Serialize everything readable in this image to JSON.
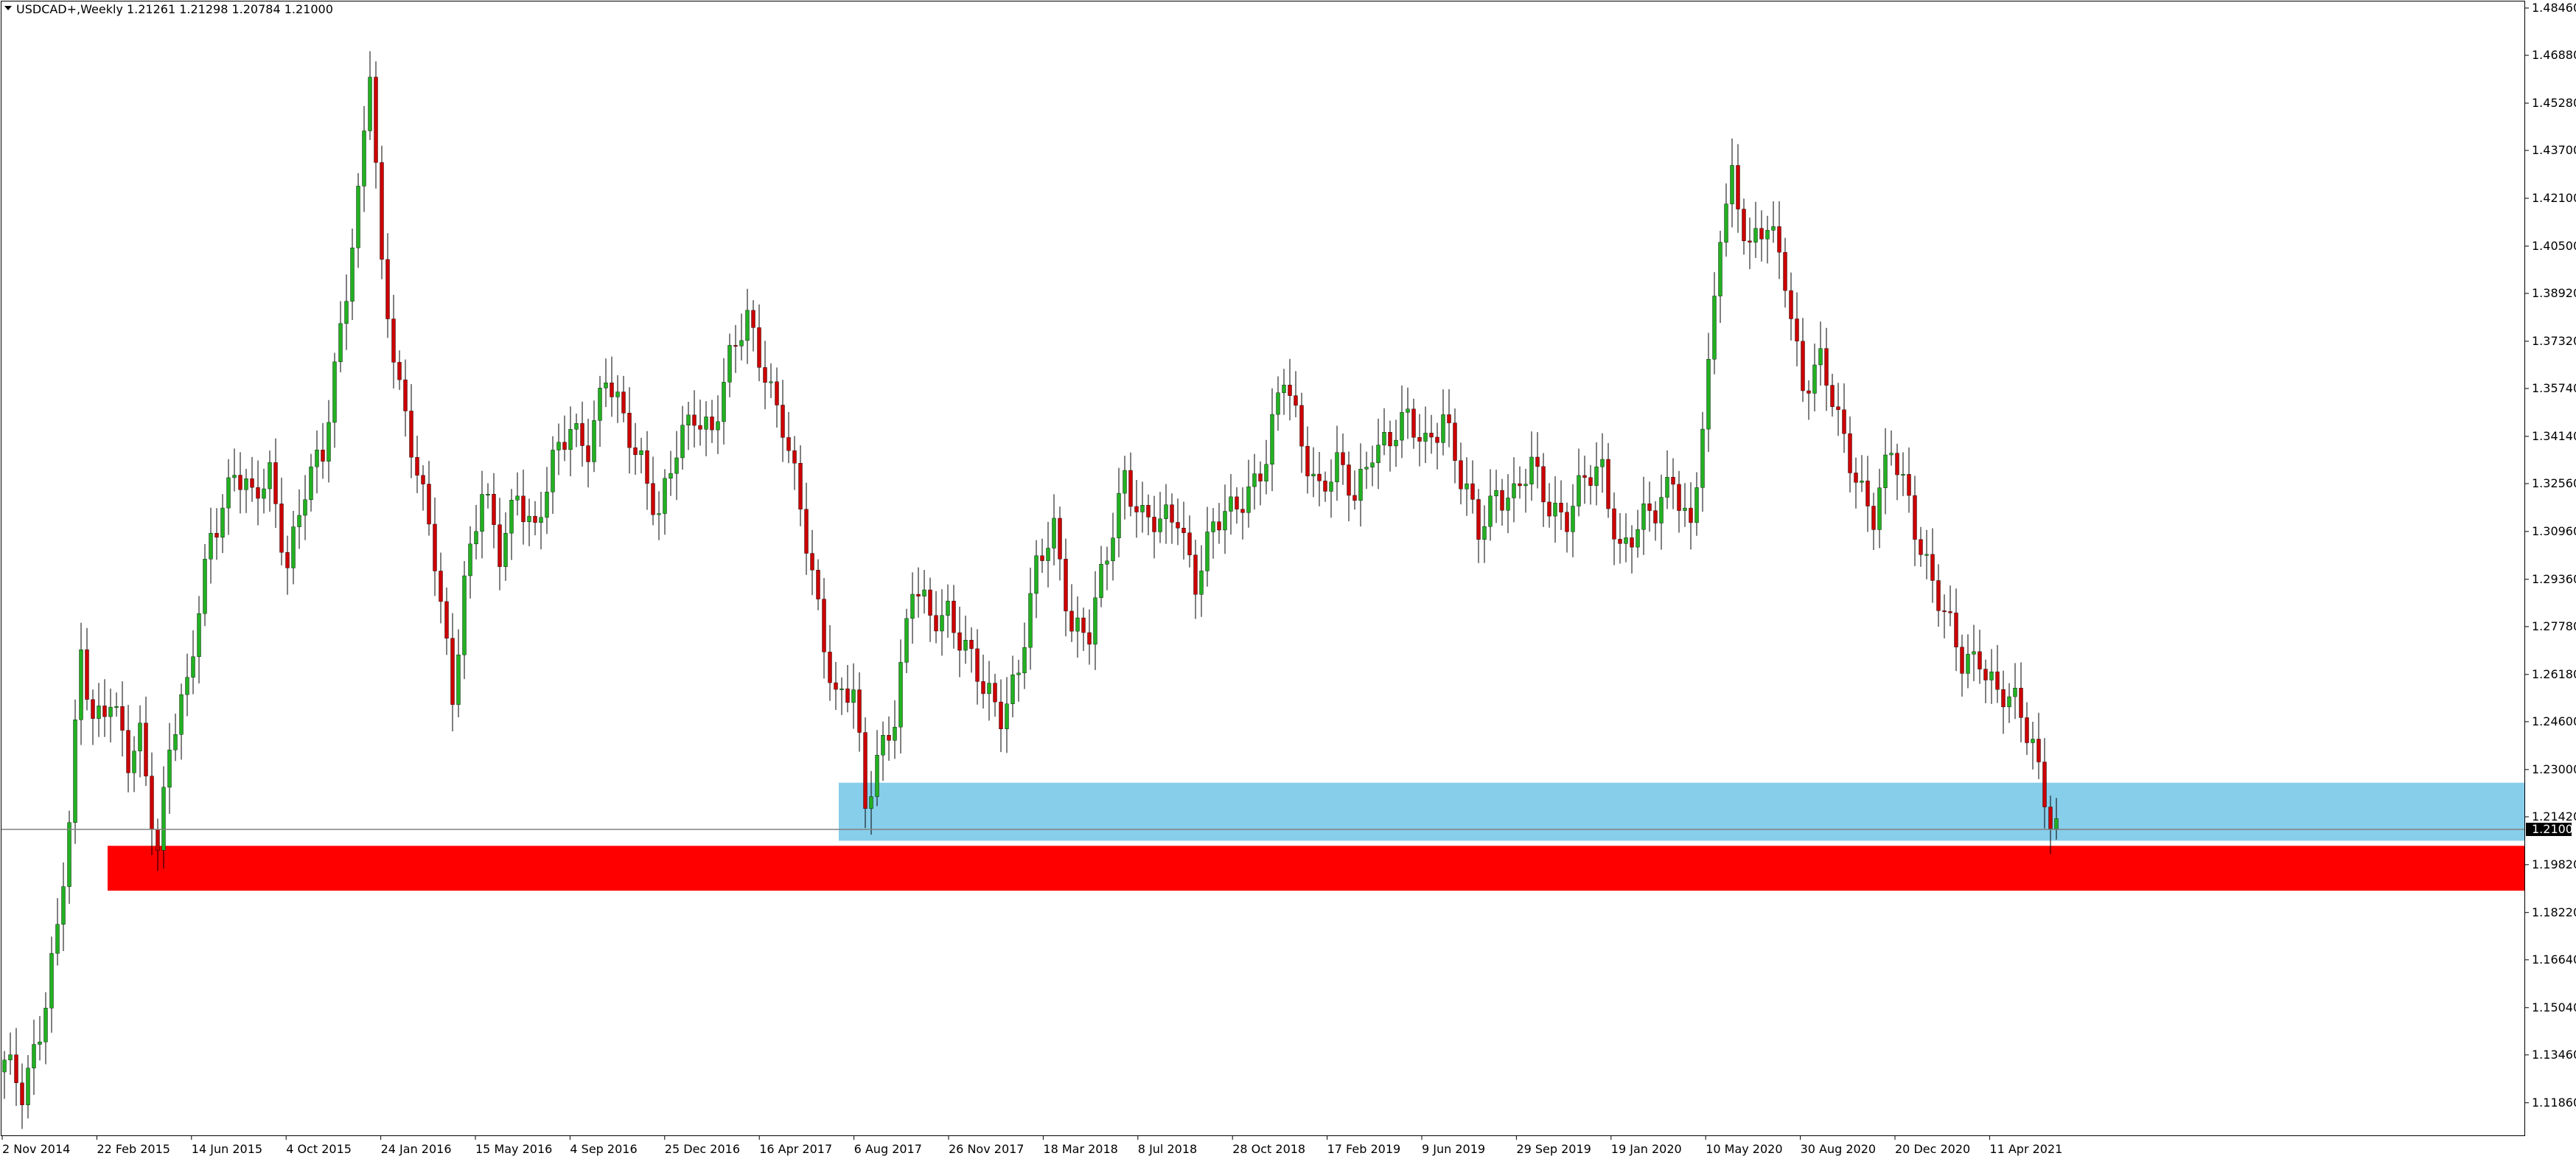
{
  "window": {
    "symbol": "USDCAD+",
    "timeframe": "Weekly",
    "title_text": "USDCAD+,Weekly  1.21261 1.21298 1.20784 1.21000"
  },
  "chart_data": {
    "type": "candlestick",
    "title": "USDCAD+,Weekly",
    "ohlc_last": {
      "open": 1.21261,
      "high": 1.21298,
      "low": 1.20784,
      "close": 1.21
    },
    "current_price_label": "1.21000",
    "ylim": [
      1.1077,
      1.4868
    ],
    "y_ticks": [
      "1.48460",
      "1.46880",
      "1.45280",
      "1.43700",
      "1.42100",
      "1.40500",
      "1.38920",
      "1.37320",
      "1.35740",
      "1.34140",
      "1.32560",
      "1.30960",
      "1.29360",
      "1.27780",
      "1.26180",
      "1.24600",
      "1.23000",
      "1.21420",
      "1.19820",
      "1.18220",
      "1.16640",
      "1.15040",
      "1.13460",
      "1.11860"
    ],
    "x_ticks": [
      "2 Nov 2014",
      "22 Feb 2015",
      "14 Jun 2015",
      "4 Oct 2015",
      "24 Jan 2016",
      "15 May 2016",
      "4 Sep 2016",
      "25 Dec 2016",
      "16 Apr 2017",
      "6 Aug 2017",
      "26 Nov 2017",
      "18 Mar 2018",
      "8 Jul 2018",
      "28 Oct 2018",
      "17 Feb 2019",
      "9 Jun 2019",
      "29 Sep 2019",
      "19 Jan 2020",
      "10 May 2020",
      "30 Aug 2020",
      "20 Dec 2020",
      "11 Apr 2021"
    ],
    "candle_count": 340,
    "colors": {
      "bull": "#22b022",
      "bear": "#cc0000",
      "wick": "#000000",
      "zone_blue": "#87ceeb",
      "zone_red": "#ff0000",
      "price_line": "#808080"
    },
    "zones": [
      {
        "name": "demand-zone-blue",
        "start_week": 142,
        "end_week": 340,
        "top": 1.2256,
        "bottom": 1.2062,
        "color": "#87ceeb"
      },
      {
        "name": "support-zone-red",
        "start_week": 18,
        "end_week": 340,
        "top": 1.2045,
        "bottom": 1.1895,
        "color": "#ff0000"
      }
    ],
    "price_line": 1.21,
    "anchors": [
      [
        0,
        1.13
      ],
      [
        3,
        1.122
      ],
      [
        6,
        1.145
      ],
      [
        9,
        1.175
      ],
      [
        11,
        1.21
      ],
      [
        13,
        1.27
      ],
      [
        15,
        1.248
      ],
      [
        18,
        1.255
      ],
      [
        21,
        1.23
      ],
      [
        23,
        1.24
      ],
      [
        26,
        1.205
      ],
      [
        28,
        1.24
      ],
      [
        31,
        1.255
      ],
      [
        35,
        1.31
      ],
      [
        39,
        1.33
      ],
      [
        42,
        1.318
      ],
      [
        45,
        1.33
      ],
      [
        48,
        1.3
      ],
      [
        51,
        1.322
      ],
      [
        54,
        1.335
      ],
      [
        57,
        1.38
      ],
      [
        60,
        1.42
      ],
      [
        62,
        1.463
      ],
      [
        64,
        1.395
      ],
      [
        67,
        1.36
      ],
      [
        70,
        1.33
      ],
      [
        73,
        1.298
      ],
      [
        76,
        1.255
      ],
      [
        78,
        1.295
      ],
      [
        81,
        1.323
      ],
      [
        84,
        1.3
      ],
      [
        87,
        1.325
      ],
      [
        90,
        1.31
      ],
      [
        93,
        1.33
      ],
      [
        96,
        1.345
      ],
      [
        99,
        1.34
      ],
      [
        102,
        1.36
      ],
      [
        105,
        1.345
      ],
      [
        108,
        1.335
      ],
      [
        111,
        1.315
      ],
      [
        114,
        1.335
      ],
      [
        117,
        1.35
      ],
      [
        120,
        1.345
      ],
      [
        123,
        1.365
      ],
      [
        126,
        1.38
      ],
      [
        129,
        1.365
      ],
      [
        132,
        1.345
      ],
      [
        135,
        1.315
      ],
      [
        138,
        1.285
      ],
      [
        141,
        1.255
      ],
      [
        144,
        1.255
      ],
      [
        146,
        1.215
      ],
      [
        148,
        1.235
      ],
      [
        151,
        1.25
      ],
      [
        154,
        1.29
      ],
      [
        157,
        1.28
      ],
      [
        160,
        1.285
      ],
      [
        163,
        1.27
      ],
      [
        166,
        1.255
      ],
      [
        169,
        1.25
      ],
      [
        172,
        1.265
      ],
      [
        175,
        1.295
      ],
      [
        178,
        1.31
      ],
      [
        181,
        1.28
      ],
      [
        184,
        1.275
      ],
      [
        187,
        1.3
      ],
      [
        190,
        1.33
      ],
      [
        193,
        1.315
      ],
      [
        196,
        1.31
      ],
      [
        199,
        1.315
      ],
      [
        202,
        1.295
      ],
      [
        205,
        1.31
      ],
      [
        208,
        1.315
      ],
      [
        211,
        1.325
      ],
      [
        214,
        1.335
      ],
      [
        217,
        1.36
      ],
      [
        220,
        1.34
      ],
      [
        223,
        1.325
      ],
      [
        226,
        1.33
      ],
      [
        229,
        1.32
      ],
      [
        232,
        1.34
      ],
      [
        235,
        1.34
      ],
      [
        238,
        1.345
      ],
      [
        241,
        1.34
      ],
      [
        244,
        1.35
      ],
      [
        247,
        1.325
      ],
      [
        250,
        1.31
      ],
      [
        253,
        1.325
      ],
      [
        256,
        1.32
      ],
      [
        259,
        1.33
      ],
      [
        262,
        1.32
      ],
      [
        265,
        1.315
      ],
      [
        268,
        1.325
      ],
      [
        271,
        1.33
      ],
      [
        274,
        1.305
      ],
      [
        277,
        1.31
      ],
      [
        280,
        1.315
      ],
      [
        283,
        1.33
      ],
      [
        286,
        1.31
      ],
      [
        289,
        1.36
      ],
      [
        291,
        1.41
      ],
      [
        293,
        1.43
      ],
      [
        296,
        1.405
      ],
      [
        299,
        1.41
      ],
      [
        302,
        1.395
      ],
      [
        305,
        1.36
      ],
      [
        308,
        1.365
      ],
      [
        311,
        1.345
      ],
      [
        314,
        1.33
      ],
      [
        317,
        1.315
      ],
      [
        320,
        1.335
      ],
      [
        323,
        1.32
      ],
      [
        326,
        1.3
      ],
      [
        329,
        1.28
      ],
      [
        332,
        1.265
      ],
      [
        335,
        1.27
      ],
      [
        338,
        1.255
      ],
      [
        341,
        1.25
      ],
      [
        344,
        1.24
      ],
      [
        347,
        1.215
      ],
      [
        348,
        1.21
      ]
    ]
  }
}
